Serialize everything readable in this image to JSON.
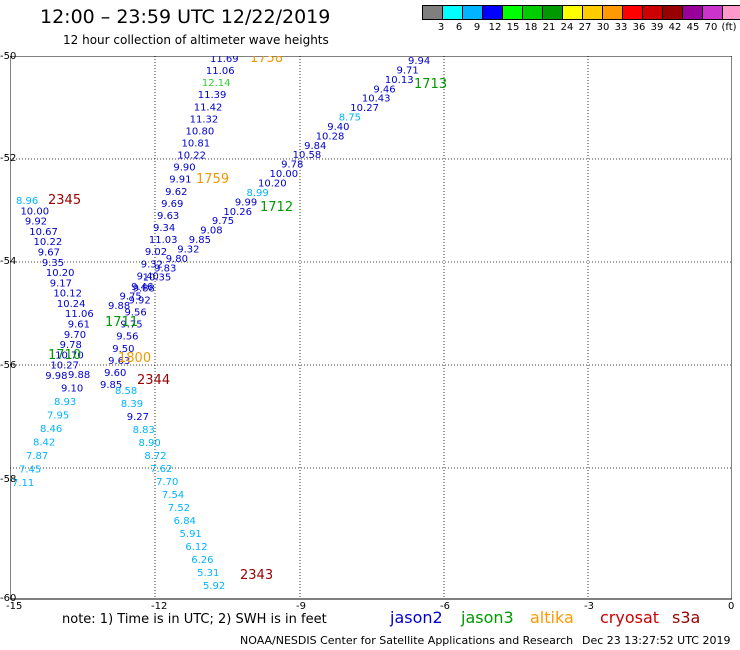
{
  "header": {
    "title": "12:00 – 23:59 UTC 12/22/2019",
    "subtitle": "12 hour collection of altimeter wave heights"
  },
  "legend": {
    "colors": [
      "#7f7f7f",
      "#00ffff",
      "#00b4ff",
      "#0000ff",
      "#00ff00",
      "#00cc00",
      "#009900",
      "#ffff00",
      "#ffcc00",
      "#ff9900",
      "#ff0000",
      "#cc0000",
      "#990000",
      "#990099",
      "#cc33cc",
      "#ff99cc",
      "#000000"
    ],
    "labels": [
      "3",
      "6",
      "9",
      "12",
      "15",
      "18",
      "21",
      "24",
      "27",
      "30",
      "33",
      "36",
      "39",
      "42",
      "45",
      "70",
      "(ft)"
    ]
  },
  "axes": {
    "x_ticks": [
      "-15",
      "-12",
      "-9",
      "-6",
      "-3",
      "0"
    ],
    "y_ticks": [
      "-50",
      "-52",
      "-54",
      "-56",
      "-58",
      "-60"
    ]
  },
  "tracks": {
    "swh_colors": {
      "blue": "#0000cc",
      "cyan": "#00b4ff",
      "green": "#33cc33",
      "orange": "#ee9900"
    },
    "track_1758": [
      "11.69",
      "11.06",
      "12.14",
      "11.39",
      "11.42",
      "11.32",
      "10.80",
      "10.81",
      "10.22",
      "9.90",
      "9.91",
      "9.62",
      "9.69",
      "9.63",
      "9.34",
      "11.03",
      "9.02",
      "9.32",
      "9.40",
      "9.88",
      "9.92",
      "9.56",
      "9.75",
      "9.56",
      "9.50",
      "9.63",
      "9.60",
      "9.85"
    ],
    "track_1713": [
      "9.94",
      "9.71",
      "10.13",
      "9.46",
      "10.43",
      "10.27",
      "8.75",
      "9.40",
      "10.28",
      "9.84",
      "10.58",
      "9.78",
      "10.00",
      "10.20",
      "8.99",
      "9.99",
      "10.26",
      "9.75",
      "9.08",
      "9.85",
      "9.32",
      "9.80",
      "9.83",
      "10.35",
      "9.46",
      "9.75",
      "9.88"
    ],
    "track_2345": [
      "8.96",
      "10.00",
      "9.92",
      "10.67",
      "10.22",
      "9.67",
      "9.35",
      "10.20",
      "9.17",
      "10.12",
      "10.24",
      "11.06",
      "9.61",
      "9.70",
      "9.78",
      "10.70",
      "10.27",
      "9.98",
      "9.88",
      "9.10",
      "8.93",
      "7.95",
      "8.46",
      "8.42",
      "7.87",
      "7.45",
      "7.11"
    ],
    "track_2343": [
      "8.58",
      "8.39",
      "9.27",
      "8.83",
      "8.90",
      "8.72",
      "7.62",
      "7.70",
      "7.54",
      "7.52",
      "6.84",
      "5.91",
      "6.12",
      "6.26",
      "5.31",
      "5.92"
    ],
    "times": {
      "t1758": "1758",
      "t1713": "1713",
      "t2345": "2345",
      "t1759": "1759",
      "t1712": "1712",
      "t1711": "1711",
      "t1710": "1710",
      "t1800": "1800",
      "t2344": "2344",
      "t2343": "2343"
    }
  },
  "footer": {
    "note": "note: 1) Time is in UTC; 2) SWH is in feet",
    "sat_jason2": "jason2",
    "sat_jason3": "jason3",
    "sat_altika": "altika",
    "sat_cryosat": "cryosat",
    "sat_s3a": "s3a",
    "sat_colors": {
      "jason2": "#0000cc",
      "jason3": "#009900",
      "altika": "#ff9900",
      "cryosat": "#cc0000",
      "s3a": "#990000"
    },
    "credit": "NOAA/NESDIS Center for Satellite Applications and Research",
    "timestamp": "Dec 23 13:27:52 UTC 2019"
  }
}
